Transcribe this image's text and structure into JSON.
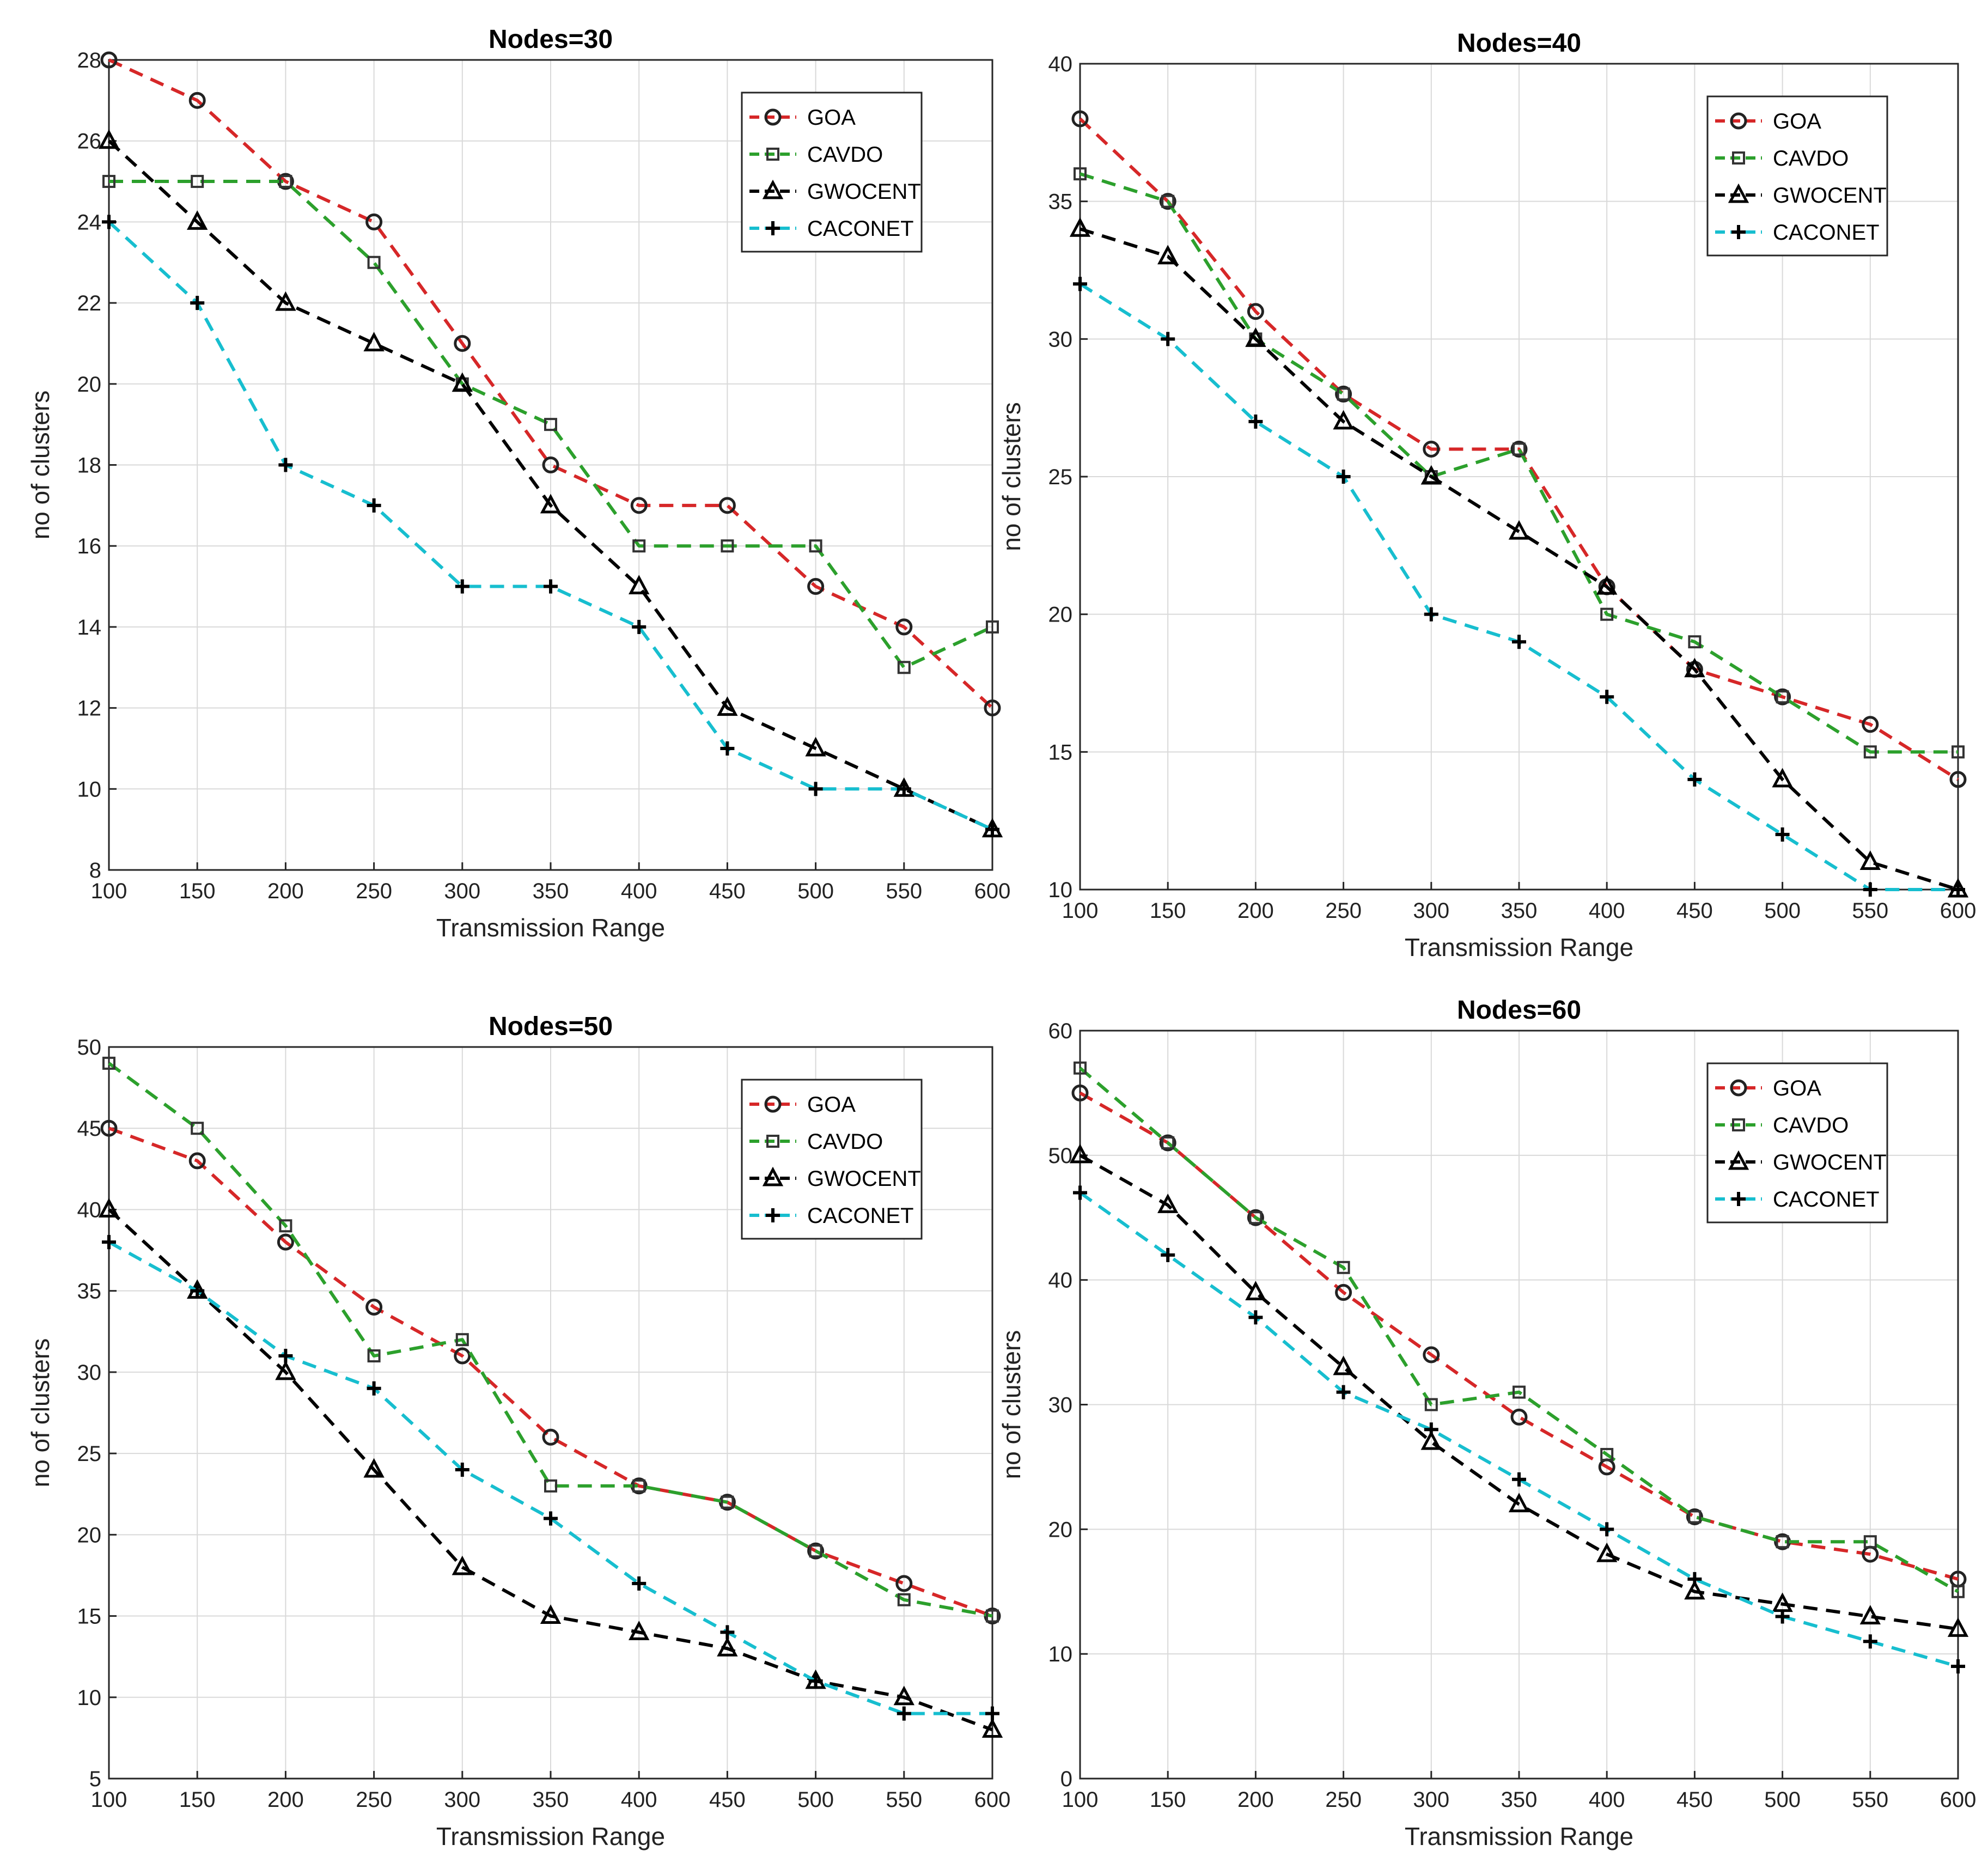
{
  "chart_data": [
    {
      "type": "line",
      "title": "Nodes=30",
      "xlabel": "Transmission Range",
      "ylabel": "no of clusters",
      "x": [
        100,
        150,
        200,
        250,
        300,
        350,
        400,
        450,
        500,
        550,
        600
      ],
      "xlim": [
        100,
        600
      ],
      "ylim": [
        8,
        28
      ],
      "yticks": [
        8,
        10,
        12,
        14,
        16,
        18,
        20,
        22,
        24,
        26,
        28
      ],
      "grid": true,
      "legend": "top-right",
      "series": [
        {
          "name": "GOA",
          "color": "#d62728",
          "marker": "circle",
          "values": [
            28,
            27,
            25,
            24,
            21,
            18,
            17,
            17,
            15,
            14,
            12
          ]
        },
        {
          "name": "CAVDO",
          "color": "#2ca02c",
          "marker": "square",
          "values": [
            25,
            25,
            25,
            23,
            20,
            19,
            16,
            16,
            16,
            13,
            14
          ]
        },
        {
          "name": "GWOCENT",
          "color": "#000000",
          "marker": "triangle",
          "values": [
            26,
            24,
            22,
            21,
            20,
            17,
            15,
            12,
            11,
            10,
            9
          ]
        },
        {
          "name": "CACONET",
          "color": "#17becf",
          "marker": "plus",
          "values": [
            24,
            22,
            18,
            17,
            15,
            15,
            14,
            11,
            10,
            10,
            9
          ]
        }
      ]
    },
    {
      "type": "line",
      "title": "Nodes=40",
      "xlabel": "Transmission Range",
      "ylabel": "no of clusters",
      "x": [
        100,
        150,
        200,
        250,
        300,
        350,
        400,
        450,
        500,
        550,
        600
      ],
      "xlim": [
        100,
        600
      ],
      "ylim": [
        10,
        40
      ],
      "yticks": [
        10,
        15,
        20,
        25,
        30,
        35,
        40
      ],
      "grid": true,
      "legend": "top-right",
      "series": [
        {
          "name": "GOA",
          "color": "#d62728",
          "marker": "circle",
          "values": [
            38,
            35,
            31,
            28,
            26,
            26,
            21,
            18,
            17,
            16,
            14
          ]
        },
        {
          "name": "CAVDO",
          "color": "#2ca02c",
          "marker": "square",
          "values": [
            36,
            35,
            30,
            28,
            25,
            26,
            20,
            19,
            17,
            15,
            15
          ]
        },
        {
          "name": "GWOCENT",
          "color": "#000000",
          "marker": "triangle",
          "values": [
            34,
            33,
            30,
            27,
            25,
            23,
            21,
            18,
            14,
            11,
            10
          ]
        },
        {
          "name": "CACONET",
          "color": "#17becf",
          "marker": "plus",
          "values": [
            32,
            30,
            27,
            25,
            20,
            19,
            17,
            14,
            12,
            10,
            10
          ]
        }
      ]
    },
    {
      "type": "line",
      "title": "Nodes=50",
      "xlabel": "Transmission Range",
      "ylabel": "no of clusters",
      "x": [
        100,
        150,
        200,
        250,
        300,
        350,
        400,
        450,
        500,
        550,
        600
      ],
      "xlim": [
        100,
        600
      ],
      "ylim": [
        5,
        50
      ],
      "yticks": [
        5,
        10,
        15,
        20,
        25,
        30,
        35,
        40,
        45,
        50
      ],
      "grid": true,
      "legend": "top-right",
      "series": [
        {
          "name": "GOA",
          "color": "#d62728",
          "marker": "circle",
          "values": [
            45,
            43,
            38,
            34,
            31,
            26,
            23,
            22,
            19,
            17,
            15
          ]
        },
        {
          "name": "CAVDO",
          "color": "#2ca02c",
          "marker": "square",
          "values": [
            49,
            45,
            39,
            31,
            32,
            23,
            23,
            22,
            19,
            16,
            15
          ]
        },
        {
          "name": "GWOCENT",
          "color": "#000000",
          "marker": "triangle",
          "values": [
            40,
            35,
            30,
            24,
            18,
            15,
            14,
            13,
            11,
            10,
            8
          ]
        },
        {
          "name": "CACONET",
          "color": "#17becf",
          "marker": "plus",
          "values": [
            38,
            35,
            31,
            29,
            24,
            21,
            17,
            14,
            11,
            9,
            9
          ]
        }
      ]
    },
    {
      "type": "line",
      "title": "Nodes=60",
      "xlabel": "Transmission Range",
      "ylabel": "no of clusters",
      "x": [
        100,
        150,
        200,
        250,
        300,
        350,
        400,
        450,
        500,
        550,
        600
      ],
      "xlim": [
        100,
        600
      ],
      "ylim": [
        0,
        60
      ],
      "yticks": [
        0,
        10,
        20,
        30,
        40,
        50,
        60
      ],
      "grid": true,
      "legend": "top-right",
      "series": [
        {
          "name": "GOA",
          "color": "#d62728",
          "marker": "circle",
          "values": [
            55,
            51,
            45,
            39,
            34,
            29,
            25,
            21,
            19,
            18,
            16
          ]
        },
        {
          "name": "CAVDO",
          "color": "#2ca02c",
          "marker": "square",
          "values": [
            57,
            51,
            45,
            41,
            30,
            31,
            26,
            21,
            19,
            19,
            15
          ]
        },
        {
          "name": "GWOCENT",
          "color": "#000000",
          "marker": "triangle",
          "values": [
            50,
            46,
            39,
            33,
            27,
            22,
            18,
            15,
            14,
            13,
            12
          ]
        },
        {
          "name": "CACONET",
          "color": "#17becf",
          "marker": "plus",
          "values": [
            47,
            42,
            37,
            31,
            28,
            24,
            20,
            16,
            13,
            11,
            9
          ]
        }
      ]
    }
  ]
}
